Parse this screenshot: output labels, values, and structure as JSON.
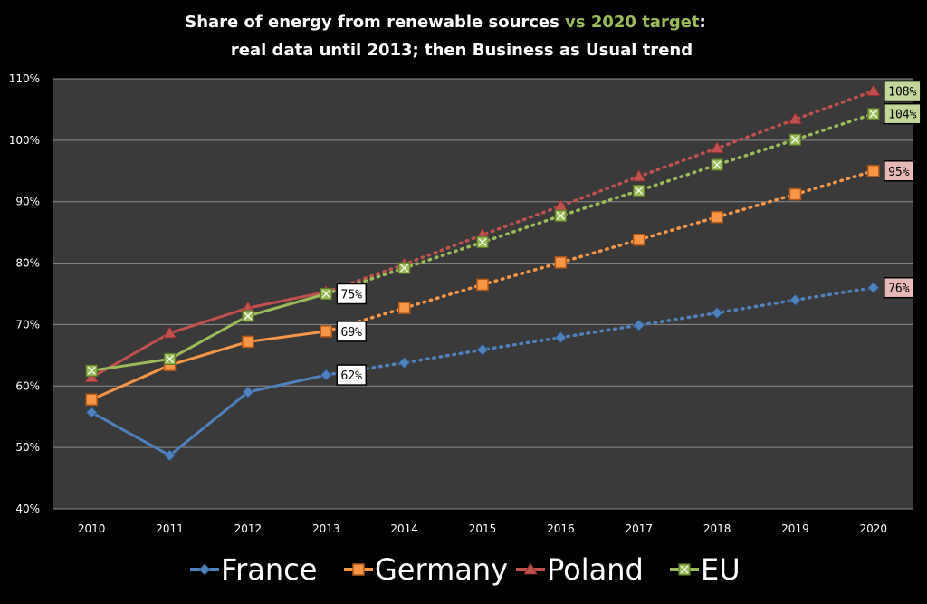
{
  "chart_data": {
    "type": "line",
    "title_part1": "Share of energy from renewable sources ",
    "title_highlight": "vs 2020 target",
    "title_part2": ":",
    "subtitle": "real data until 2013; then Business as Usual trend",
    "x": [
      "2010",
      "2011",
      "2012",
      "2013",
      "2014",
      "2015",
      "2016",
      "2017",
      "2018",
      "2019",
      "2020"
    ],
    "ylim": [
      40,
      110
    ],
    "yticks": [
      "40%",
      "50%",
      "60%",
      "70%",
      "80%",
      "90%",
      "100%",
      "110%"
    ],
    "grid": true,
    "legend_position": "bottom",
    "actual_until_index": 3,
    "series": [
      {
        "name": "France",
        "color": "#4f81bd",
        "marker": "diamond",
        "values": [
          55.7,
          48.7,
          59.0,
          61.8,
          63.8,
          65.9,
          67.9,
          69.9,
          71.9,
          74.0,
          76.0
        ]
      },
      {
        "name": "Germany",
        "color": "#f79646",
        "marker": "square",
        "values": [
          57.8,
          63.4,
          67.2,
          68.9,
          72.7,
          76.5,
          80.1,
          83.8,
          87.5,
          91.2,
          95.0
        ]
      },
      {
        "name": "Poland",
        "color": "#c0504d",
        "marker": "triangle",
        "values": [
          61.4,
          68.6,
          72.7,
          75.3,
          79.8,
          84.6,
          89.3,
          94.1,
          98.7,
          103.4,
          108.0
        ]
      },
      {
        "name": "EU",
        "color": "#9bbb59",
        "marker": "x",
        "values": [
          62.5,
          64.4,
          71.4,
          75.0,
          79.2,
          83.4,
          87.7,
          91.8,
          96.0,
          100.1,
          104.3
        ]
      }
    ],
    "annotations": [
      {
        "text": "75%",
        "x_index": 3,
        "y": 75.0,
        "bg": "#ffffff",
        "series": "EU"
      },
      {
        "text": "69%",
        "x_index": 3,
        "y": 68.9,
        "bg": "#ffffff",
        "series": "Germany"
      },
      {
        "text": "62%",
        "x_index": 3,
        "y": 61.8,
        "bg": "#ffffff",
        "series": "France"
      },
      {
        "text": "108%",
        "x_index": 10,
        "y": 108.0,
        "bg": "#c4d79b",
        "series": "Poland"
      },
      {
        "text": "104%",
        "x_index": 10,
        "y": 104.3,
        "bg": "#c4d79b",
        "series": "EU"
      },
      {
        "text": "95%",
        "x_index": 10,
        "y": 95.0,
        "bg": "#e6b8b7",
        "series": "Germany"
      },
      {
        "text": "76%",
        "x_index": 10,
        "y": 76.0,
        "bg": "#e6b8b7",
        "series": "France"
      }
    ]
  },
  "colors": {
    "background": "#000000",
    "plot_area": "#3a3a3a",
    "gridline": "#8c8c8c",
    "text": "#ffffff",
    "title_highlight": "#9bbb59"
  }
}
